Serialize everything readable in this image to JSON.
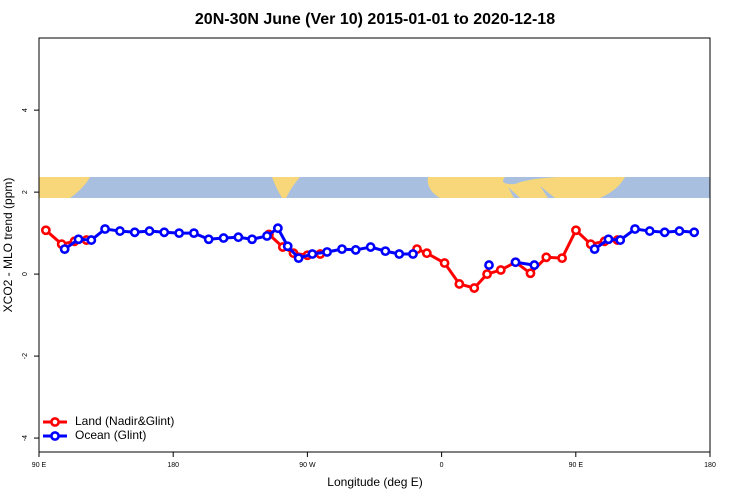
{
  "chart_data": {
    "type": "line",
    "title": "20N-30N June (Ver 10)   2015-01-01 to 2020-12-18",
    "xlabel": "Longitude (deg E)",
    "ylabel": "XCO2 - MLO trend (ppm)",
    "xlim": [
      90,
      540
    ],
    "ylim": [
      -4.34,
      5.76
    ],
    "xticks": [
      {
        "value": 90,
        "label": "90 E"
      },
      180,
      {
        "value": 270,
        "label": "90 W"
      },
      {
        "value": 360,
        "label": "0"
      },
      {
        "value": 450,
        "label": "90 E"
      },
      {
        "value": 540,
        "label": "180"
      }
    ],
    "yticks": [
      -4,
      -2,
      0,
      2,
      4
    ],
    "legend": "bottom-left",
    "series": [
      {
        "name": "Land (Nadir&Glint)",
        "color": "#ff0000",
        "x": [
          94.6,
          105.2,
          113.8,
          121.8,
          null,
          244.2,
          253.5,
          260.7,
          270.0,
          278.6,
          null,
          343.5,
          350.1,
          362.0,
          371.9,
          381.9,
          390.5,
          399.7,
          409.6,
          419.6,
          430.2,
          440.8,
          450.1,
          460.0,
          469.3,
          477.9
        ],
        "values": [
          1.07,
          0.73,
          0.8,
          0.83,
          null,
          0.97,
          0.66,
          0.51,
          0.46,
          0.49,
          null,
          0.61,
          0.51,
          0.27,
          -0.24,
          -0.34,
          0.0,
          0.1,
          0.29,
          0.02,
          0.41,
          0.39,
          1.07,
          0.73,
          0.8,
          0.83
        ]
      },
      {
        "name": "Ocean (Glint)",
        "color": "#0000ff",
        "x": [
          107.2,
          116.5,
          125.1,
          134.3,
          144.3,
          154.2,
          164.1,
          174.0,
          184.0,
          193.9,
          203.8,
          213.8,
          223.7,
          232.9,
          242.9,
          250.2,
          256.8,
          264.1,
          273.3,
          283.2,
          293.2,
          302.4,
          312.4,
          322.3,
          331.6,
          340.8,
          null,
          391.8,
          null,
          409.6,
          422.2,
          null,
          462.6,
          471.9,
          479.8,
          489.7,
          499.6,
          509.6,
          519.5,
          529.4
        ],
        "values": [
          0.61,
          0.85,
          0.83,
          1.1,
          1.05,
          1.02,
          1.05,
          1.02,
          1.0,
          1.0,
          0.85,
          0.88,
          0.9,
          0.85,
          0.93,
          1.12,
          0.68,
          0.39,
          0.49,
          0.54,
          0.61,
          0.59,
          0.66,
          0.56,
          0.49,
          0.49,
          null,
          0.22,
          null,
          0.29,
          0.22,
          null,
          0.61,
          0.85,
          0.83,
          1.1,
          1.05,
          1.02,
          1.05,
          1.02
        ]
      }
    ]
  }
}
